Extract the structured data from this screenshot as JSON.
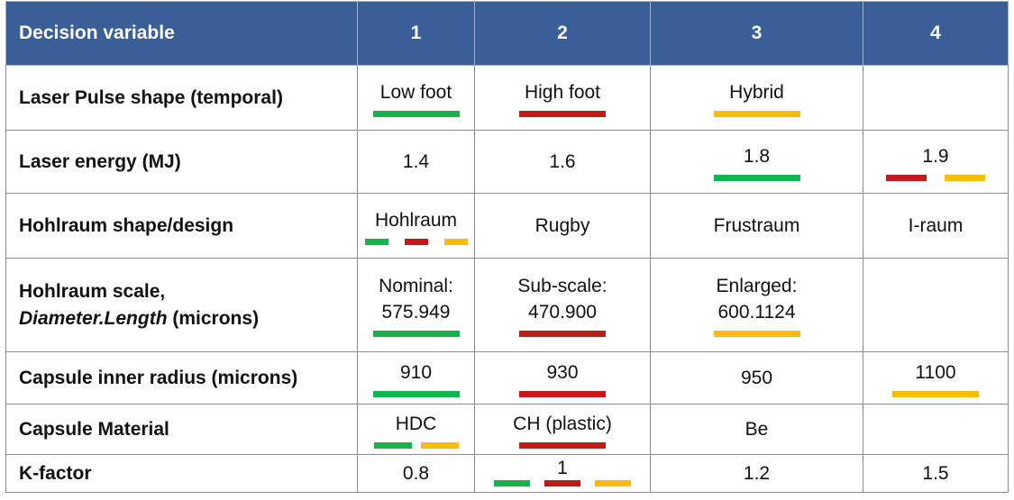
{
  "header": {
    "label": "Decision variable",
    "cols": [
      "1",
      "2",
      "3",
      "4"
    ]
  },
  "rows": [
    {
      "label": "Laser Pulse shape (temporal)",
      "cells": [
        {
          "text": "Low foot",
          "bars": [
            "green"
          ]
        },
        {
          "text": "High foot",
          "bars": [
            "red"
          ]
        },
        {
          "text": "Hybrid",
          "bars": [
            "amber"
          ]
        },
        {
          "text": "",
          "bars": []
        }
      ]
    },
    {
      "label": "Laser energy (MJ)",
      "cells": [
        {
          "text": "1.4",
          "bars": []
        },
        {
          "text": "1.6",
          "bars": []
        },
        {
          "text": "1.8",
          "bars": [
            "green"
          ]
        },
        {
          "text": "1.9",
          "bars": [
            "red",
            "amber"
          ]
        }
      ]
    },
    {
      "label": "Hohlraum shape/design",
      "cells": [
        {
          "text": "Hohlraum",
          "bars": [
            "green",
            "red",
            "amber"
          ]
        },
        {
          "text": "Rugby",
          "bars": []
        },
        {
          "text": "Frustraum",
          "bars": []
        },
        {
          "text": "I-raum",
          "bars": []
        }
      ]
    },
    {
      "label_line1": "Hohlraum scale,",
      "label_italic": "Diameter.Length",
      "label_rest": " (microns)",
      "cells": [
        {
          "line1": "Nominal:",
          "line2": "575.949",
          "bars": [
            "green"
          ]
        },
        {
          "line1": "Sub-scale:",
          "line2": "470.900",
          "bars": [
            "red"
          ]
        },
        {
          "line1": "Enlarged:",
          "line2": "600.1124",
          "bars": [
            "amber"
          ]
        },
        {
          "text": "",
          "bars": []
        }
      ]
    },
    {
      "label": "Capsule inner radius (microns)",
      "cells": [
        {
          "text": "910",
          "bars": [
            "green"
          ]
        },
        {
          "text": "930",
          "bars": [
            "red"
          ]
        },
        {
          "text": "950",
          "bars": []
        },
        {
          "text": "1100",
          "bars": [
            "amber"
          ]
        }
      ]
    },
    {
      "label": "Capsule Material",
      "cells": [
        {
          "text": "HDC",
          "bars": [
            "green",
            "amber"
          ]
        },
        {
          "text": "CH (plastic)",
          "bars": [
            "red"
          ]
        },
        {
          "text": "Be",
          "bars": []
        },
        {
          "text": "",
          "bars": []
        }
      ]
    },
    {
      "label": "K-factor",
      "cells": [
        {
          "text": "0.8",
          "bars": []
        },
        {
          "text": "1",
          "bars": [
            "green",
            "red",
            "amber"
          ]
        },
        {
          "text": "1.2",
          "bars": []
        },
        {
          "text": "1.5",
          "bars": []
        }
      ]
    }
  ],
  "colors": {
    "header_bg": "#3a5f97",
    "green": "#16b34d",
    "red": "#c11a1a",
    "amber": "#fbbb0b"
  }
}
